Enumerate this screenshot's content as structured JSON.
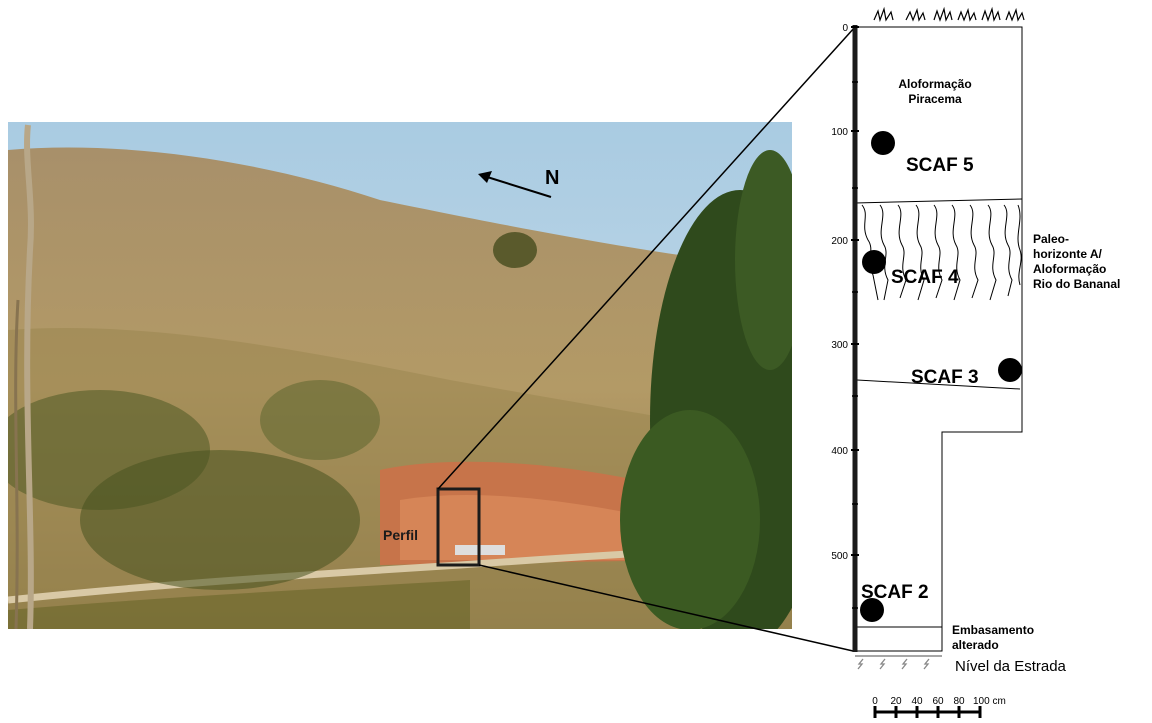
{
  "photo": {
    "north_label": "N",
    "perfil_label": "Perfil"
  },
  "profile": {
    "depth_ticks": [
      "0",
      "100",
      "200",
      "300",
      "400",
      "500"
    ],
    "units": [
      {
        "name": "Aloformação\nPiracema"
      },
      {
        "name": "Paleo-\nhorizonte A/\nAloformação\nRio do Bananal"
      },
      {
        "name": "Embasamento\nalterado"
      }
    ],
    "samples": [
      "SCAF 5",
      "SCAF 4",
      "SCAF 3",
      "SCAF 2"
    ],
    "road_level": "Nível da Estrada"
  },
  "scale_bar": {
    "ticks": [
      "0",
      "20",
      "40",
      "60",
      "80",
      "100 cm"
    ]
  }
}
